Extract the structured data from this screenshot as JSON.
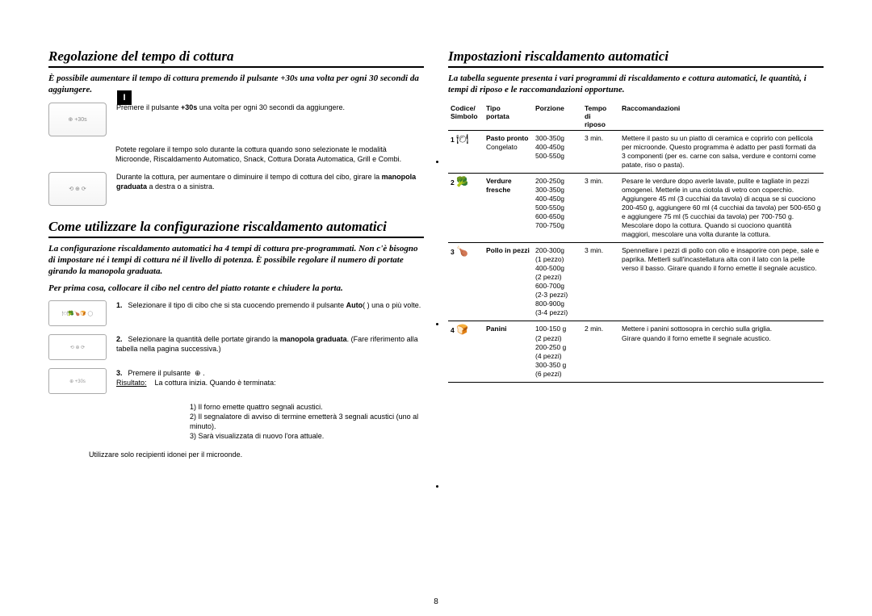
{
  "sideTab": "I",
  "pageNumber": "8",
  "left": {
    "section1": {
      "title": "Regolazione del tempo di cottura",
      "intro": "È possibile aumentare il tempo di cottura premendo il pulsante +30s una volta per ogni 30 secondi da aggiungere.",
      "p1": "Premere il pulsante +30s una volta per ogni 30 secondi da aggiungere.",
      "p2": "Potete regolare il tempo solo durante la cottura quando sono selezionate le modalità Microonde, Riscaldamento Automatico, Snack, Cottura Dorata Automatica, Grill e Combi.",
      "p3": "Durante la cottura, per aumentare o diminuire il tempo di cottura del cibo, girare la manopola graduata a destra o a sinistra."
    },
    "section2": {
      "title": "Come utilizzare la configurazione riscaldamento automatici",
      "intro1": "La configurazione riscaldamento automatici ha 4 tempi di cottura pre-programmati. Non c'è bisogno di impostare né i tempi di cottura né il livello di potenza. È possibile regolare il numero di portate girando la manopola graduata.",
      "intro2": "Per prima cosa, collocare il cibo nel centro del piatto rotante e chiudere la porta.",
      "step1": "Selezionare il tipo di cibo che si sta cuocendo premendo il pulsante Auto(    ) una o più volte.",
      "step2": "Selezionare la quantità delle portate girando la manopola graduata. (Fare riferimento alla tabella nella pagina successiva.)",
      "step3": "Premere il pulsante    .",
      "resLabel": "Risultato:",
      "res0": "La cottura inizia. Quando è terminata:",
      "res1": "1)  Il forno emette quattro segnali acustici.",
      "res2": "2)  Il segnalatore di avviso di termine emetterà 3 segnali acustici (uno al minuto).",
      "res3": "3)  Sarà visualizzata di nuovo l'ora attuale.",
      "foot": "Utilizzare solo recipienti idonei per il microonde."
    }
  },
  "right": {
    "title": "Impostazioni riscaldamento automatici",
    "intro": "La tabella seguente presenta i vari programmi di riscaldamento e cottura automatici, le quantità, i tempi di riposo e le raccomandazioni opportune.",
    "headers": {
      "code": "Codice/\nSimbolo",
      "tipo": "Tipo\nportata",
      "porz": "Porzione",
      "tempo": "Tempo\ndi\nriposo",
      "racc": "Raccomandazioni"
    },
    "rows": [
      {
        "code": "1",
        "icon": "🍽",
        "tipo": "Pasto pronto",
        "tipoExtra": "Congelato",
        "porz": "300-350g\n400-450g\n500-550g",
        "tempo": "3 min.",
        "racc": "Mettere il pasto su un piatto di ceramica e coprirlo con pellicola per microonde. Questo programma è adatto per pasti formati da 3 componenti (per es. carne con salsa, verdure e contorni come patate, riso o pasta)."
      },
      {
        "code": "2",
        "icon": "🥦",
        "tipo": "Verdure fresche",
        "tipoExtra": "",
        "porz": "200-250g\n300-350g\n400-450g\n500-550g\n600-650g\n700-750g",
        "tempo": "3 min.",
        "racc": "Pesare le verdure dopo averle lavate, pulite e tagliate in pezzi omogenei. Metterle in una ciotola di vetro con coperchio. Aggiungere 45 ml (3 cucchiai da tavola) di acqua se si cuociono 200-450 g, aggiungere 60 ml (4 cucchiai da tavola) per 500-650 g e aggiungere 75 ml (5 cucchiai da tavola) per 700-750 g. Mescolare dopo la cottura. Quando si cuociono quantità maggiori, mescolare una volta durante la cottura."
      },
      {
        "code": "3",
        "icon": "🍗",
        "tipo": "Pollo in pezzi",
        "tipoExtra": "",
        "porz": "200-300g\n(1 pezzo)\n400-500g\n(2 pezzi)\n600-700g\n(2-3 pezzi)\n800-900g\n(3-4 pezzi)",
        "tempo": "3 min.",
        "racc": "Spennellare i pezzi di pollo con olio e insaporire con pepe, sale e paprika. Metterli sull'incastellatura alta con il lato con la pelle verso il basso. Girare quando il forno emette il segnale acustico."
      },
      {
        "code": "4",
        "icon": "🍞",
        "tipo": "Panini",
        "tipoExtra": "",
        "porz": "100-150 g\n(2 pezzi)\n200-250 g\n(4 pezzi)\n300-350 g\n(6 pezzi)",
        "tempo": "2 min.",
        "racc": "Mettere i panini sottosopra in cerchio sulla griglia.\nGirare quando il forno emette il segnale acustico."
      }
    ]
  }
}
